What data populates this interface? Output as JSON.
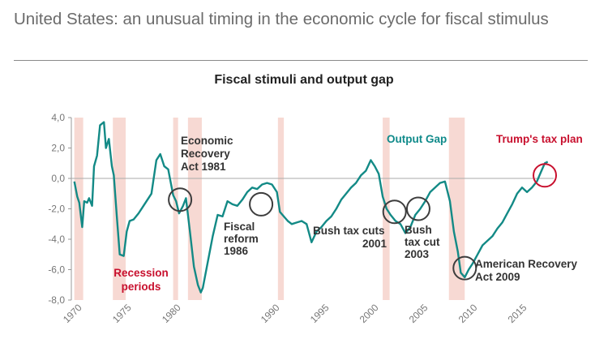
{
  "page": {
    "title": "United States: an unusual timing in the economic cycle for fiscal stimulus"
  },
  "chart_data": {
    "type": "line",
    "title": "Fiscal stimuli and output gap",
    "xlabel": "",
    "ylabel": "",
    "xlim": [
      1969.7,
      2018.5
    ],
    "ylim": [
      -8.0,
      4.0
    ],
    "x_ticks": [
      "1970",
      "1975",
      "1980",
      "1990",
      "1995",
      "2000",
      "2005",
      "2010",
      "2015"
    ],
    "y_ticks": [
      "4,0",
      "2,0",
      "0,0",
      "-2,0",
      "-4,0",
      "-6,0",
      "-8,0"
    ],
    "colors": {
      "line": "#138a86",
      "recession": "#f7d9d3",
      "circle": "#3d3d3d",
      "trump": "#c8102e",
      "output_gap_label": "#0f8a8a",
      "axis": "#999999"
    },
    "recessions": [
      [
        1970.0,
        1970.9
      ],
      [
        1973.9,
        1975.2
      ],
      [
        1980.0,
        1980.5
      ],
      [
        1981.5,
        1982.9
      ],
      [
        1990.6,
        1991.2
      ],
      [
        2001.2,
        2001.9
      ],
      [
        2007.9,
        2009.5
      ]
    ],
    "series": [
      {
        "name": "Output Gap",
        "x": [
          1970.0,
          1970.3,
          1970.5,
          1970.8,
          1971.0,
          1971.3,
          1971.5,
          1971.8,
          1972.0,
          1972.3,
          1972.6,
          1973.0,
          1973.2,
          1973.5,
          1973.8,
          1974.0,
          1974.3,
          1974.6,
          1975.0,
          1975.3,
          1975.6,
          1976.0,
          1976.5,
          1977.0,
          1977.4,
          1977.8,
          1978.3,
          1978.7,
          1979.1,
          1979.5,
          1980.0,
          1980.3,
          1980.6,
          1981.0,
          1981.3,
          1981.7,
          1982.1,
          1982.5,
          1982.8,
          1983.0,
          1983.5,
          1984.0,
          1984.5,
          1985.0,
          1985.5,
          1986.0,
          1986.5,
          1987.0,
          1987.5,
          1988.0,
          1988.5,
          1989.0,
          1989.5,
          1990.0,
          1990.5,
          1990.8,
          1991.2,
          1991.6,
          1992.0,
          1992.5,
          1993.0,
          1993.5,
          1994.0,
          1994.5,
          1995.0,
          1995.5,
          1996.0,
          1996.5,
          1997.0,
          1997.5,
          1998.0,
          1998.5,
          1999.0,
          1999.5,
          2000.0,
          2000.4,
          2000.8,
          2001.2,
          2001.6,
          2002.0,
          2002.5,
          2003.0,
          2003.5,
          2004.0,
          2004.5,
          2005.0,
          2005.5,
          2006.0,
          2006.5,
          2007.0,
          2007.5,
          2008.0,
          2008.4,
          2008.8,
          2009.1,
          2009.5,
          2009.9,
          2010.3,
          2010.8,
          2011.3,
          2011.8,
          2012.3,
          2012.8,
          2013.3,
          2013.8,
          2014.3,
          2014.8,
          2015.3,
          2015.8,
          2016.3,
          2016.8,
          2017.2,
          2017.6,
          2017.9
        ],
        "y": [
          -0.2,
          -1.2,
          -1.6,
          -3.2,
          -1.5,
          -1.6,
          -1.3,
          -1.8,
          0.8,
          1.5,
          3.5,
          3.7,
          2.0,
          2.6,
          0.8,
          0.2,
          -2.5,
          -5.0,
          -5.1,
          -3.5,
          -2.8,
          -2.7,
          -2.3,
          -1.8,
          -1.4,
          -1.0,
          1.2,
          1.6,
          0.8,
          0.6,
          -1.1,
          -1.5,
          -2.3,
          -1.8,
          -1.3,
          -3.5,
          -5.8,
          -7.0,
          -7.5,
          -7.2,
          -5.5,
          -3.8,
          -2.4,
          -2.5,
          -1.5,
          -1.7,
          -1.8,
          -1.4,
          -0.9,
          -0.6,
          -0.7,
          -0.4,
          -0.3,
          -0.4,
          -0.9,
          -2.2,
          -2.5,
          -2.8,
          -3.0,
          -2.9,
          -2.8,
          -3.0,
          -4.2,
          -3.5,
          -3.2,
          -2.8,
          -2.5,
          -2.0,
          -1.4,
          -1.0,
          -0.6,
          -0.3,
          0.2,
          0.5,
          1.2,
          0.8,
          0.3,
          -1.2,
          -2.0,
          -2.4,
          -2.8,
          -3.0,
          -3.6,
          -3.2,
          -2.4,
          -2.0,
          -1.5,
          -0.9,
          -0.6,
          -0.3,
          -0.2,
          -1.5,
          -3.5,
          -4.8,
          -6.2,
          -6.5,
          -6.0,
          -5.6,
          -5.0,
          -4.4,
          -4.1,
          -3.8,
          -3.3,
          -2.9,
          -2.3,
          -1.7,
          -1.0,
          -0.6,
          -0.9,
          -0.6,
          -0.2,
          0.4,
          1.0,
          1.1
        ]
      }
    ],
    "annotations": {
      "output_gap": "Output Gap",
      "trump": "Trump's tax plan",
      "erta_1": "Economic",
      "erta_2": "Recovery",
      "erta_3": "Act 1981",
      "fiscal_1": "Fiscal",
      "fiscal_2": "reform",
      "fiscal_3": "1986",
      "bush1_1": "Bush  tax cuts",
      "bush1_2": "2001",
      "bush2_1": "Bush",
      "bush2_2": "tax cut",
      "bush2_3": "2003",
      "arra_1": "American Recovery",
      "arra_2": "Act  2009",
      "recession_1": "Recession",
      "recession_2": "periods"
    }
  }
}
